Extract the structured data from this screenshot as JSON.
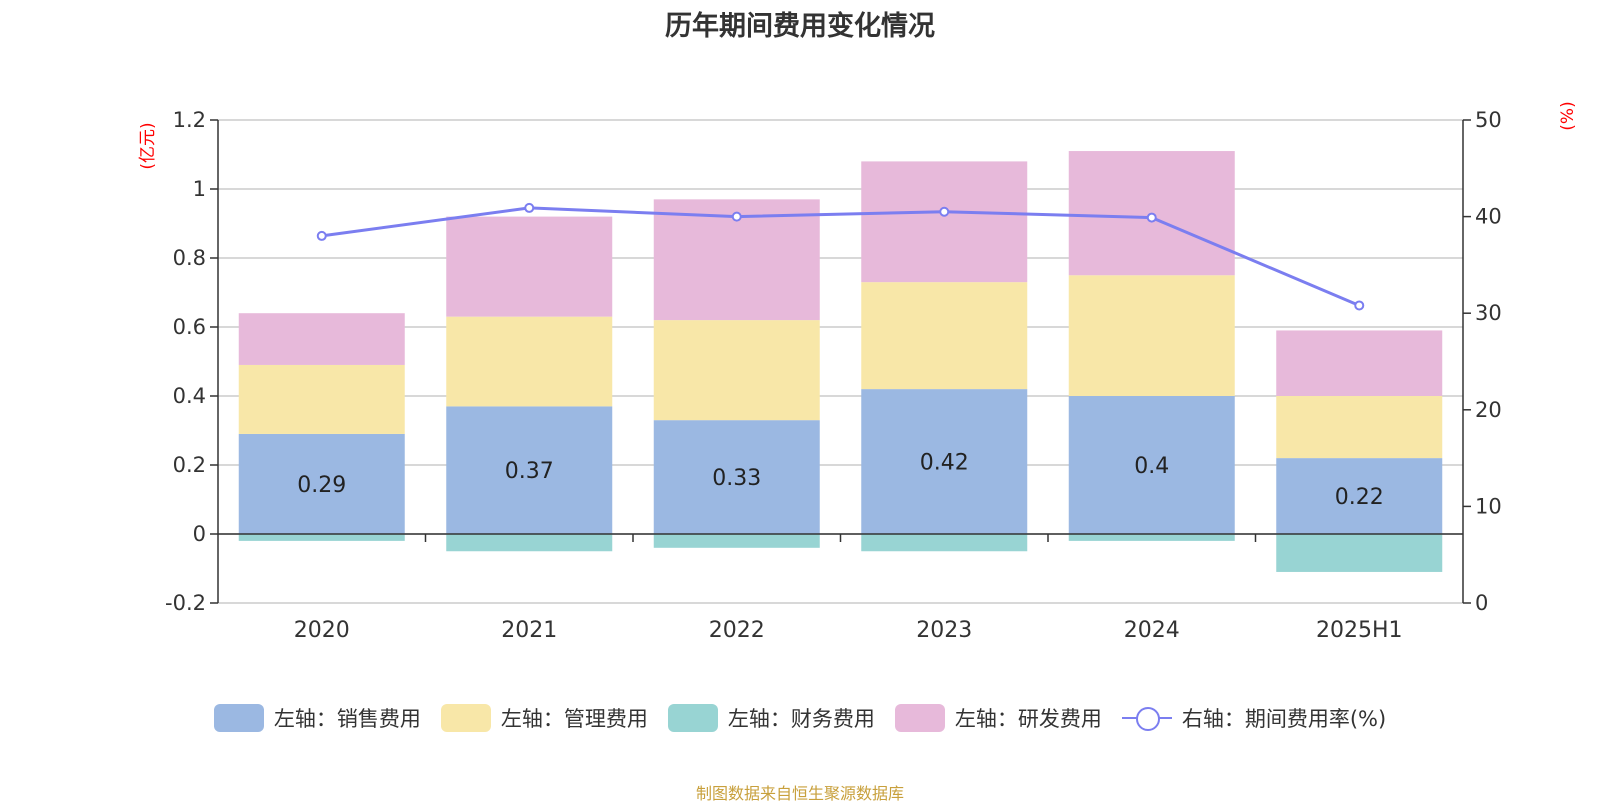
{
  "footer": "制图数据来自恒生聚源数据库",
  "chart_data": {
    "type": "bar",
    "title": "历年期间费用变化情况",
    "categories": [
      "2020",
      "2021",
      "2022",
      "2023",
      "2024",
      "2025H1"
    ],
    "stacked": true,
    "y_left": {
      "unit": "(亿元)",
      "range": [
        -0.2,
        1.2
      ],
      "ticks": [
        "-0.2",
        "0",
        "0.2",
        "0.4",
        "0.6",
        "0.8",
        "1",
        "1.2"
      ]
    },
    "y_right": {
      "unit": "(%)",
      "range": [
        0,
        50
      ],
      "ticks": [
        "0",
        "10",
        "20",
        "30",
        "40",
        "50"
      ]
    },
    "grid": true,
    "legend_position": "bottom",
    "series": [
      {
        "name": "左轴：销售费用",
        "axis": "left",
        "type": "bar",
        "color": "#9bb8e2",
        "values": [
          0.29,
          0.37,
          0.33,
          0.42,
          0.4,
          0.22
        ],
        "labels": [
          "0.29",
          "0.37",
          "0.33",
          "0.42",
          "0.4",
          "0.22"
        ]
      },
      {
        "name": "左轴：管理费用",
        "axis": "left",
        "type": "bar",
        "color": "#f8e7a8",
        "values": [
          0.2,
          0.26,
          0.29,
          0.31,
          0.35,
          0.18
        ]
      },
      {
        "name": "左轴：财务费用",
        "axis": "left",
        "type": "bar",
        "color": "#98d4d3",
        "values": [
          -0.02,
          -0.05,
          -0.04,
          -0.05,
          -0.02,
          -0.11
        ]
      },
      {
        "name": "左轴：研发费用",
        "axis": "left",
        "type": "bar",
        "color": "#e7b9da",
        "values": [
          0.15,
          0.29,
          0.35,
          0.35,
          0.36,
          0.19
        ]
      },
      {
        "name": "右轴：期间费用率(%)",
        "axis": "right",
        "type": "line",
        "color": "#7b7ef0",
        "values": [
          38.0,
          40.9,
          40.0,
          40.5,
          39.9,
          30.8
        ]
      }
    ]
  }
}
